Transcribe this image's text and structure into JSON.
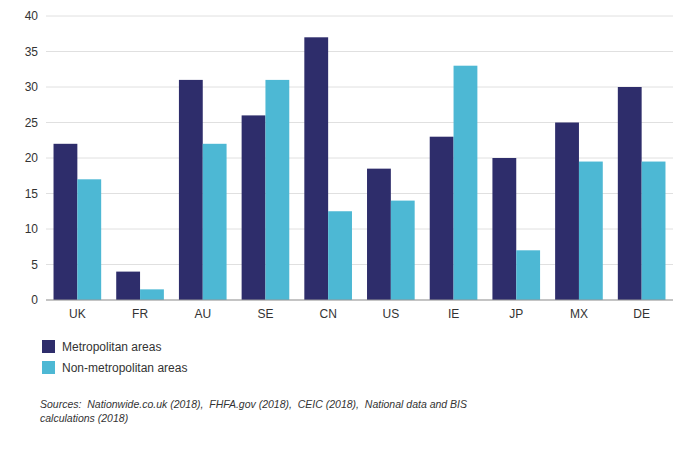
{
  "chart_data": {
    "type": "bar",
    "categories": [
      "UK",
      "FR",
      "AU",
      "SE",
      "CN",
      "US",
      "IE",
      "JP",
      "MX",
      "DE"
    ],
    "series": [
      {
        "name": "Metropolitan areas",
        "color": "#2e2d6b",
        "values": [
          22,
          4,
          31,
          26,
          37,
          18.5,
          23,
          20,
          25,
          30
        ]
      },
      {
        "name": "Non-metropolitan areas",
        "color": "#4db8d4",
        "values": [
          17,
          1.5,
          22,
          31,
          12.5,
          14,
          33,
          7,
          19.5,
          19.5
        ]
      }
    ],
    "ylim": [
      0,
      40
    ],
    "yticks": [
      0,
      5,
      10,
      15,
      20,
      25,
      30,
      35,
      40
    ],
    "grid": true,
    "legend": "bottom-left",
    "annotations": [
      "Sources:  Nationwide.co.uk (2018),  FHFA.gov (2018),  CEIC (2018),  National data and BIS\ncalculations (2018)"
    ]
  }
}
